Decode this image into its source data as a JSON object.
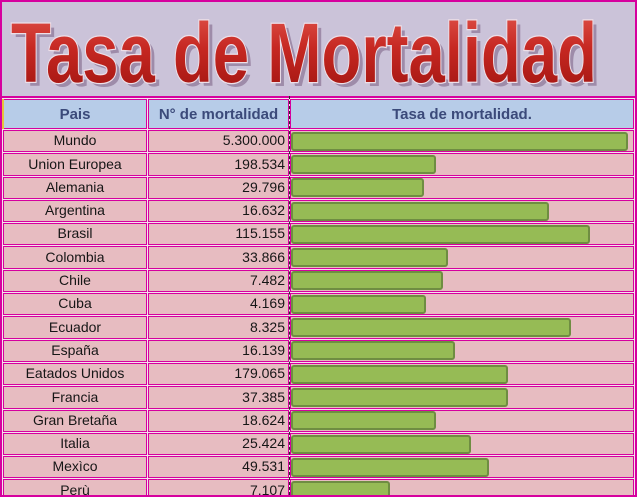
{
  "title": {
    "text": "Tasa de Mortalidad"
  },
  "table": {
    "headers": {
      "country": "Pais",
      "number": "N° de mortalidad",
      "rate": "Tasa de mortalidad."
    },
    "rows": [
      {
        "country": "Mundo",
        "value": "5.300.000",
        "bar_pct": 98.5
      },
      {
        "country": "Union Europea",
        "value": "198.534",
        "bar_pct": 42.5
      },
      {
        "country": "Alemania",
        "value": "29.796",
        "bar_pct": 39
      },
      {
        "country": "Argentina",
        "value": "16.632",
        "bar_pct": 75.5
      },
      {
        "country": "Brasil",
        "value": "115.155",
        "bar_pct": 87.5
      },
      {
        "country": "Colombia",
        "value": "33.866",
        "bar_pct": 46
      },
      {
        "country": "Chile",
        "value": "7.482",
        "bar_pct": 44.5
      },
      {
        "country": "Cuba",
        "value": "4.169",
        "bar_pct": 39.5
      },
      {
        "country": "Ecuador",
        "value": "8.325",
        "bar_pct": 82
      },
      {
        "country": "España",
        "value": "16.139",
        "bar_pct": 48
      },
      {
        "country": "Eatados Unidos",
        "value": "179.065",
        "bar_pct": 63.5
      },
      {
        "country": "Francia",
        "value": "37.385",
        "bar_pct": 63.5
      },
      {
        "country": "Gran Bretaña",
        "value": "18.624",
        "bar_pct": 42.5
      },
      {
        "country": "Italia",
        "value": "25.424",
        "bar_pct": 52.5
      },
      {
        "country": "Mexìco",
        "value": "49.531",
        "bar_pct": 58
      },
      {
        "country": "Perù",
        "value": "7.107",
        "bar_pct": 29
      }
    ]
  },
  "colors": {
    "background": "#cbc3d9",
    "magenta_border": "#d6009e",
    "header_bg": "#b7cce8",
    "header_text": "#3b4a7a",
    "row_bg": "#e7bcc1",
    "bar_fill": "#96bb55",
    "bar_border": "#6f8d42",
    "title_red": "#c62822"
  },
  "chart_data": {
    "type": "bar",
    "orientation": "horizontal",
    "title": "Tasa de Mortalidad",
    "categories": [
      "Mundo",
      "Union Europea",
      "Alemania",
      "Argentina",
      "Brasil",
      "Colombia",
      "Chile",
      "Cuba",
      "Ecuador",
      "España",
      "Eatados Unidos",
      "Francia",
      "Gran Bretaña",
      "Italia",
      "Mexìco",
      "Perù"
    ],
    "series": [
      {
        "name": "N° de mortalidad",
        "values": [
          5300000,
          198534,
          29796,
          16632,
          115155,
          33866,
          7482,
          4169,
          8325,
          16139,
          179065,
          37385,
          18624,
          25424,
          49531,
          7107
        ]
      },
      {
        "name": "Tasa de mortalidad. (bar length, % of column width)",
        "values": [
          98.5,
          42.5,
          39,
          75.5,
          87.5,
          46,
          44.5,
          39.5,
          82,
          48,
          63.5,
          63.5,
          42.5,
          52.5,
          58,
          29
        ]
      }
    ],
    "xlabel": "",
    "ylabel": "Pais",
    "grid": false,
    "legend": false
  }
}
